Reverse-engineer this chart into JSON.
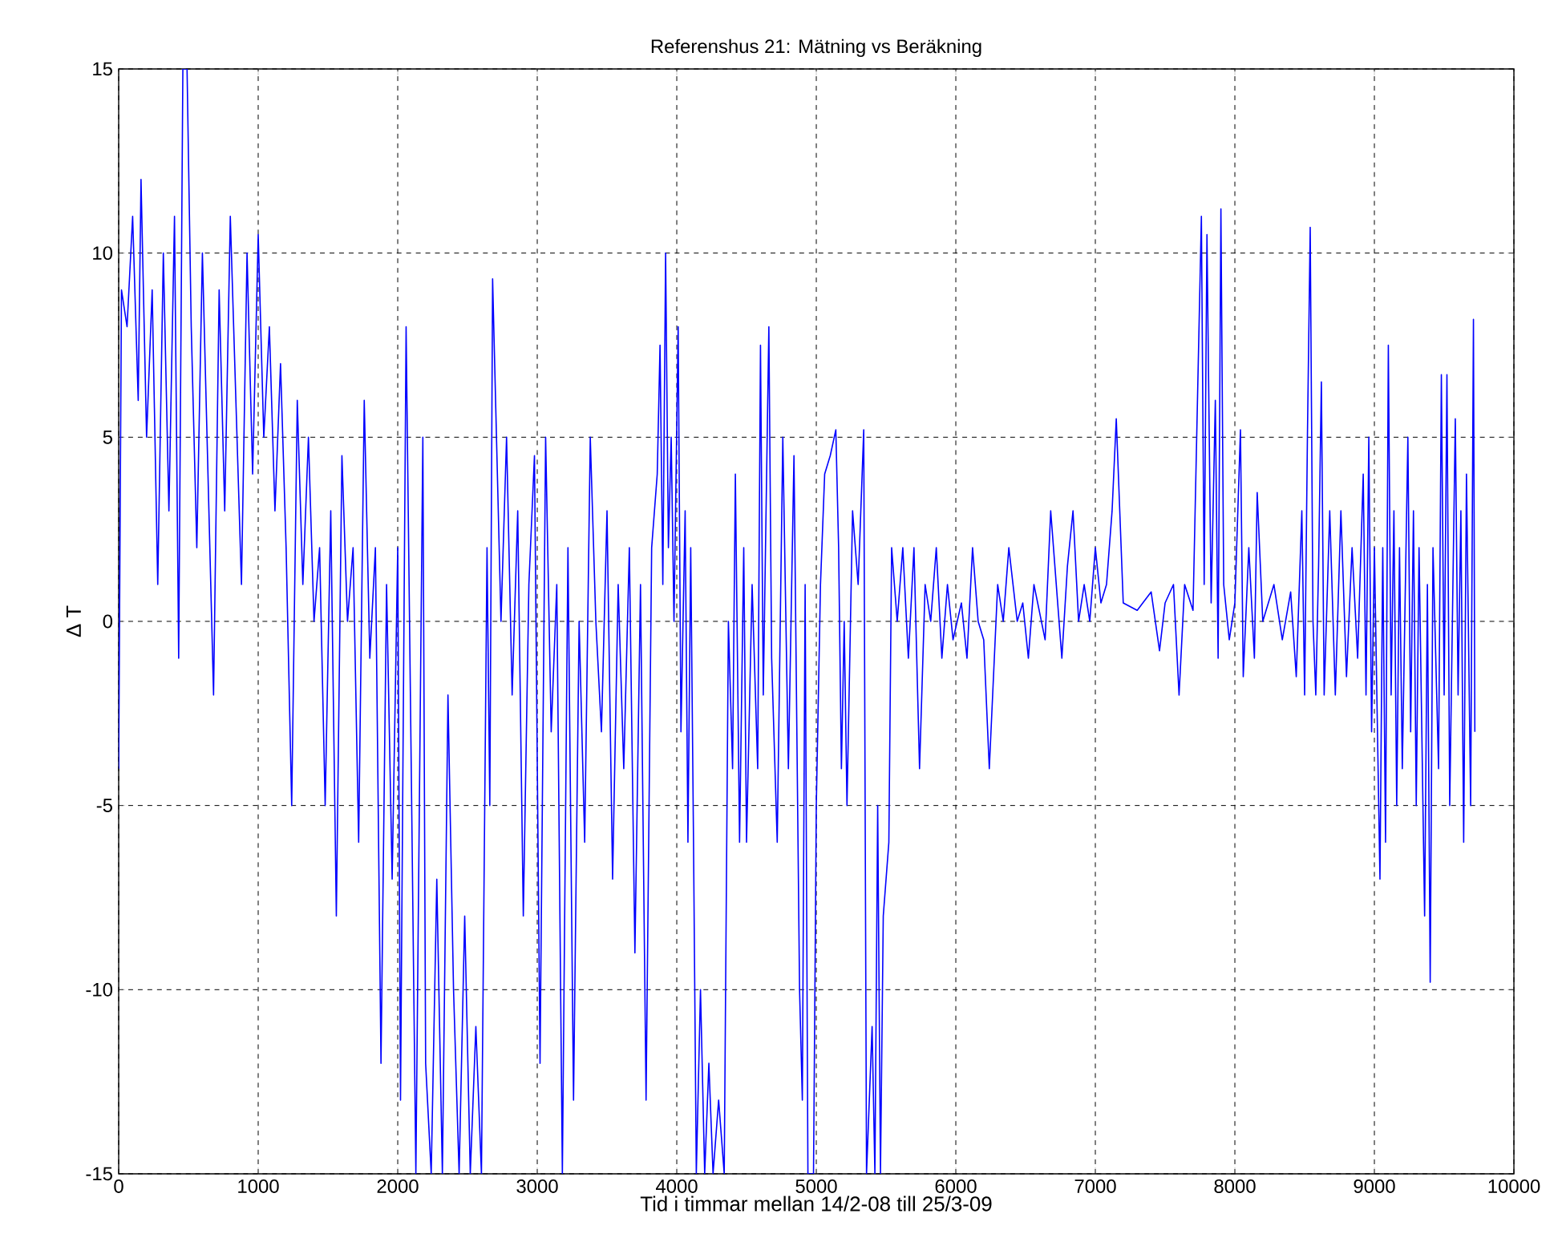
{
  "chart_data": {
    "type": "line",
    "title": "Referenshus 21: Mätning vs Beräkning",
    "xlabel": "Tid i timmar mellan 14/2-08 till 25/3-09",
    "ylabel": "Δ T",
    "color": "#0000ff",
    "line_style": "solid",
    "grid": true,
    "xlim": [
      0,
      10000
    ],
    "ylim": [
      -15,
      15
    ],
    "xticks": [
      0,
      1000,
      2000,
      3000,
      4000,
      5000,
      6000,
      7000,
      8000,
      9000,
      10000
    ],
    "yticks": [
      -15,
      -10,
      -5,
      0,
      5,
      10,
      15
    ],
    "x": [
      0,
      20,
      60,
      100,
      140,
      160,
      200,
      240,
      280,
      320,
      360,
      400,
      430,
      460,
      490,
      520,
      560,
      600,
      640,
      680,
      720,
      760,
      800,
      840,
      880,
      920,
      960,
      1000,
      1040,
      1080,
      1120,
      1160,
      1200,
      1240,
      1280,
      1320,
      1360,
      1400,
      1440,
      1480,
      1520,
      1560,
      1600,
      1640,
      1680,
      1720,
      1760,
      1800,
      1840,
      1880,
      1920,
      1960,
      2000,
      2020,
      2060,
      2100,
      2130,
      2180,
      2200,
      2240,
      2280,
      2320,
      2360,
      2400,
      2440,
      2480,
      2520,
      2560,
      2600,
      2640,
      2660,
      2680,
      2740,
      2780,
      2820,
      2860,
      2900,
      2940,
      2980,
      3020,
      3060,
      3100,
      3140,
      3180,
      3220,
      3260,
      3300,
      3340,
      3380,
      3420,
      3460,
      3500,
      3540,
      3580,
      3620,
      3660,
      3700,
      3740,
      3780,
      3820,
      3860,
      3880,
      3900,
      3920,
      3940,
      3960,
      3980,
      4010,
      4030,
      4060,
      4080,
      4100,
      4120,
      4140,
      4170,
      4200,
      4230,
      4260,
      4300,
      4340,
      4370,
      4400,
      4420,
      4450,
      4480,
      4500,
      4540,
      4580,
      4600,
      4620,
      4660,
      4680,
      4720,
      4760,
      4800,
      4840,
      4880,
      4900,
      4920,
      4940,
      4980,
      5000,
      5030,
      5060,
      5100,
      5140,
      5160,
      5180,
      5200,
      5220,
      5260,
      5300,
      5340,
      5360,
      5400,
      5420,
      5440,
      5460,
      5480,
      5520,
      5540,
      5580,
      5620,
      5660,
      5700,
      5740,
      5780,
      5820,
      5860,
      5900,
      5940,
      5980,
      6040,
      6080,
      6120,
      6160,
      6200,
      6240,
      6300,
      6340,
      6380,
      6440,
      6480,
      6520,
      6560,
      6640,
      6680,
      6720,
      6760,
      6800,
      6840,
      6880,
      6920,
      6960,
      7000,
      7040,
      7080,
      7120,
      7150,
      7200,
      7300,
      7400,
      7460,
      7500,
      7560,
      7600,
      7640,
      7700,
      7760,
      7780,
      7800,
      7830,
      7860,
      7880,
      7900,
      7920,
      7960,
      8000,
      8040,
      8060,
      8100,
      8140,
      8160,
      8200,
      8280,
      8340,
      8400,
      8440,
      8480,
      8500,
      8520,
      8540,
      8560,
      8580,
      8600,
      8620,
      8640,
      8680,
      8720,
      8760,
      8800,
      8840,
      8880,
      8920,
      8940,
      8960,
      8980,
      9000,
      9040,
      9060,
      9080,
      9100,
      9120,
      9140,
      9160,
      9180,
      9200,
      9240,
      9260,
      9280,
      9300,
      9320,
      9360,
      9380,
      9400,
      9420,
      9460,
      9480,
      9500,
      9520,
      9540,
      9580,
      9600,
      9620,
      9640,
      9660,
      9690,
      9710,
      9720
    ],
    "values": [
      -4,
      9,
      8,
      11,
      6,
      12,
      5,
      9,
      1,
      10,
      3,
      11,
      -1,
      15,
      15,
      8,
      2,
      10,
      4,
      -2,
      9,
      3,
      11,
      6,
      1,
      10,
      4,
      10.5,
      5,
      8,
      3,
      7,
      2,
      -5,
      6,
      1,
      5,
      0,
      2,
      -5,
      3,
      -8,
      4.5,
      0,
      2,
      -6,
      6,
      -1,
      2,
      -12,
      1,
      -7,
      2,
      -13,
      8,
      -5,
      -15,
      5,
      -12,
      -15,
      -7,
      -15,
      -2,
      -10,
      -15,
      -8,
      -15,
      -11,
      -15,
      2,
      -5,
      9.3,
      0,
      5,
      -2,
      3,
      -8,
      1,
      4.5,
      -12,
      5,
      -3,
      1,
      -15,
      2,
      -13,
      0,
      -6,
      5,
      0,
      -3,
      3,
      -7,
      1,
      -4,
      2,
      -9,
      1,
      -13,
      2,
      4,
      7.5,
      1,
      10,
      2,
      5,
      0,
      8,
      -3,
      3,
      -6,
      2,
      -6,
      -15,
      -10,
      -15,
      -12,
      -15,
      -13,
      -15,
      0,
      -4,
      4,
      -6,
      2,
      -6,
      1,
      -4,
      7.5,
      -2,
      8,
      -1,
      -6,
      5,
      -4,
      4.5,
      -10,
      -13,
      1,
      -15,
      -15,
      -5,
      1,
      4,
      4.5,
      5.2,
      2,
      -4,
      0,
      -5,
      3,
      1,
      5.2,
      -15,
      -11,
      -15,
      -5,
      -15,
      -8,
      -6,
      2,
      0,
      2,
      -1,
      2,
      -4,
      1,
      0,
      2,
      -1,
      1,
      -0.5,
      0.5,
      -1,
      2,
      0,
      -0.5,
      -4,
      1,
      0,
      2,
      0,
      0.5,
      -1,
      1,
      -0.5,
      3,
      1,
      -1,
      1.5,
      3,
      0,
      1,
      0,
      2,
      0.5,
      1,
      3,
      5.5,
      0.5,
      0.3,
      0.8,
      -0.8,
      0.5,
      1,
      -2,
      1,
      0.3,
      11,
      1,
      10.5,
      0.5,
      6,
      -1,
      11.2,
      1,
      -0.5,
      0.5,
      5.2,
      -1.5,
      2,
      -1,
      3.5,
      0,
      1,
      -0.5,
      0.8,
      -1.5,
      3,
      -2,
      5,
      10.7,
      0,
      -2,
      1.5,
      6.5,
      -2,
      3,
      -2,
      3,
      -1.5,
      2,
      -1,
      4,
      -2,
      5,
      -3,
      2,
      -7,
      2,
      -6,
      7.5,
      -2,
      3,
      -5,
      2,
      -4,
      5,
      -3,
      3,
      -5,
      2,
      -8,
      1,
      -9.8,
      2,
      -4,
      6.7,
      -2,
      6.7,
      -5,
      5.5,
      -2,
      3,
      -6,
      4,
      -5,
      8.2,
      -3
    ]
  }
}
